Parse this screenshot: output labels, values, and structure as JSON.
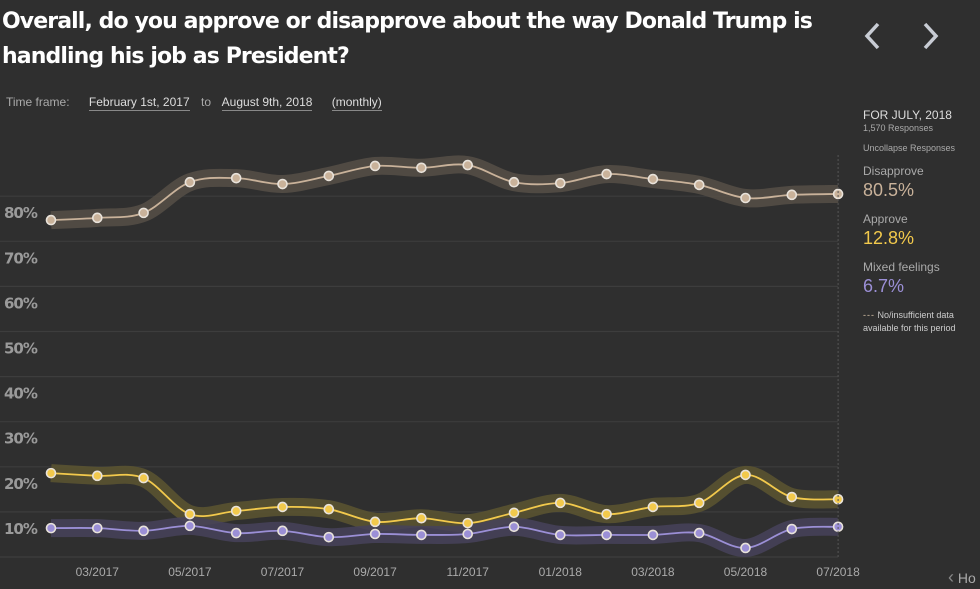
{
  "header": {
    "title": "Overall, do you approve or disapprove about the way Donald Trump is handling his job as President?",
    "prev_icon": "chevron-left-icon",
    "next_icon": "chevron-right-icon"
  },
  "timeframe": {
    "label": "Time frame:",
    "start": "February 1st, 2017",
    "to": "to",
    "end": "August 9th, 2018",
    "interval": "(monthly)"
  },
  "sidebar": {
    "period": "FOR JULY, 2018",
    "responses": "1,570 Responses",
    "uncollapse": "Uncollapse Responses",
    "items": [
      {
        "label": "Disapprove",
        "value": "80.5%",
        "color": "#c9b29a"
      },
      {
        "label": "Approve",
        "value": "12.8%",
        "color": "#f2c94c"
      },
      {
        "label": "Mixed feelings",
        "value": "6.7%",
        "color": "#9b8fd6"
      }
    ],
    "note_dash": "---",
    "note": "No/insufficient data available for this period"
  },
  "footer": {
    "home_label": "Ho"
  },
  "chart_data": {
    "type": "line",
    "title": "Overall, do you approve or disapprove about the way Donald Trump is handling his job as President?",
    "xlabel": "",
    "ylabel": "",
    "x": [
      "02/2017",
      "03/2017",
      "04/2017",
      "05/2017",
      "06/2017",
      "07/2017",
      "08/2017",
      "09/2017",
      "10/2017",
      "11/2017",
      "12/2017",
      "01/2018",
      "02/2018",
      "03/2018",
      "04/2018",
      "05/2018",
      "06/2018",
      "07/2018"
    ],
    "x_tick_labels": [
      "03/2017",
      "05/2017",
      "07/2017",
      "09/2017",
      "11/2017",
      "01/2018",
      "03/2018",
      "05/2018",
      "07/2018"
    ],
    "y_tick_labels": [
      "10%",
      "20%",
      "30%",
      "40%",
      "50%",
      "60%",
      "70%",
      "80%"
    ],
    "y_ticks": [
      10,
      20,
      30,
      40,
      50,
      60,
      70,
      80
    ],
    "ylim": [
      0,
      90
    ],
    "grid": true,
    "legend": "right",
    "series": [
      {
        "name": "Disapprove",
        "color": "#c9b29a",
        "band_color": "#564f46",
        "values": [
          74.7,
          75.2,
          76.3,
          83.1,
          84.0,
          82.7,
          84.5,
          86.7,
          86.3,
          86.9,
          83.1,
          82.9,
          84.9,
          83.8,
          82.5,
          79.6,
          80.3,
          80.5
        ]
      },
      {
        "name": "Approve",
        "color": "#f2c94c",
        "band_color": "#5c5530",
        "values": [
          18.6,
          18.0,
          17.5,
          9.5,
          10.2,
          11.1,
          10.6,
          7.8,
          8.6,
          7.5,
          9.8,
          12.0,
          9.5,
          11.1,
          12.0,
          18.2,
          13.3,
          12.8
        ]
      },
      {
        "name": "Mixed feelings",
        "color": "#9b8fd6",
        "band_color": "#46425a",
        "values": [
          6.4,
          6.4,
          5.8,
          6.9,
          5.3,
          5.8,
          4.4,
          5.1,
          4.9,
          5.1,
          6.7,
          4.9,
          4.9,
          4.9,
          5.3,
          2.0,
          6.2,
          6.7
        ]
      }
    ]
  }
}
